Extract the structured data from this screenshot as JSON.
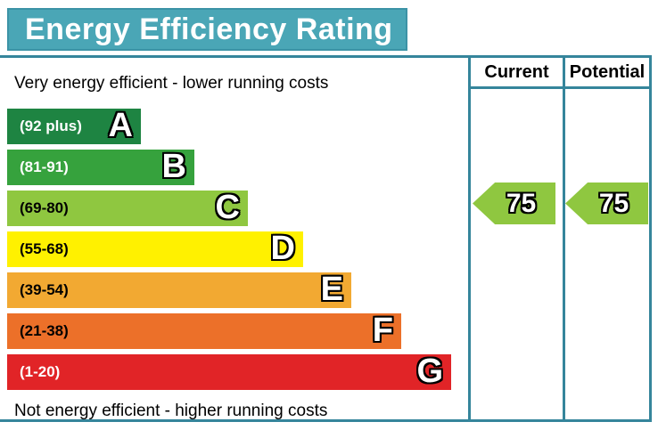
{
  "title": "Energy Efficiency Rating",
  "columns": {
    "current": "Current",
    "potential": "Potential"
  },
  "captions": {
    "top": "Very energy efficient - lower running costs",
    "bottom": "Not energy efficient - higher running costs"
  },
  "colors": {
    "banner_bg": "#4aa6b6",
    "banner_border": "#3c93a6",
    "banner_text": "#ffffff",
    "chart_border": "#35859b"
  },
  "chart_data": {
    "type": "bar",
    "title": "Energy Efficiency Rating",
    "bands": [
      {
        "letter": "A",
        "range": "(92 plus)",
        "color": "#1e8442",
        "range_label_color": "#ffffff"
      },
      {
        "letter": "B",
        "range": "(81-91)",
        "color": "#36a23d",
        "range_label_color": "#ffffff"
      },
      {
        "letter": "C",
        "range": "(69-80)",
        "color": "#8fc740",
        "range_label_color": "#000000"
      },
      {
        "letter": "D",
        "range": "(55-68)",
        "color": "#fff100",
        "range_label_color": "#000000"
      },
      {
        "letter": "E",
        "range": "(39-54)",
        "color": "#f2a932",
        "range_label_color": "#000000"
      },
      {
        "letter": "F",
        "range": "(21-38)",
        "color": "#ec7029",
        "range_label_color": "#000000"
      },
      {
        "letter": "G",
        "range": "(1-20)",
        "color": "#e12427",
        "range_label_color": "#ffffff"
      }
    ],
    "current": {
      "value": 75,
      "band": "C",
      "color": "#8fc740"
    },
    "potential": {
      "value": 75,
      "band": "C",
      "color": "#8fc740"
    },
    "layout": {
      "bar_direction": "horizontal",
      "bars_increase_downward": true,
      "columns": [
        "Current",
        "Potential"
      ],
      "grid": false
    }
  }
}
